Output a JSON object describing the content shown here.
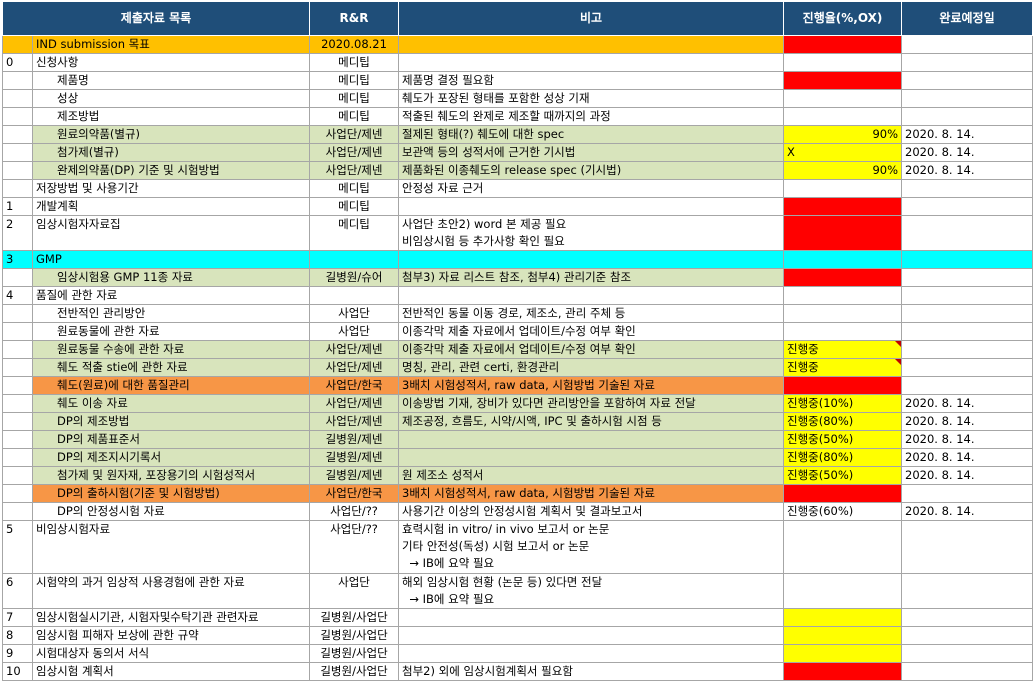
{
  "headers": [
    "제출자료 목록",
    "R&R",
    "비고",
    "진행율(%,OX)",
    "완료예정일"
  ],
  "rows": [
    {
      "num": "",
      "item": "IND submission 목표",
      "rr": "2020.08.21",
      "note": [],
      "progress": "",
      "due": "",
      "rowbg": "orange",
      "pbg": "red"
    },
    {
      "num": "0",
      "item": "신청사항",
      "rr": "메디팁",
      "note": [],
      "progress": "",
      "due": "",
      "rowbg": "",
      "pbg": ""
    },
    {
      "num": "",
      "item": "제품명",
      "rr": "메디팁",
      "note": [
        "제품명 결정 필요함"
      ],
      "progress": "",
      "due": "",
      "rowbg": "",
      "pbg": "red",
      "indent": true
    },
    {
      "num": "",
      "item": "성상",
      "rr": "메디팁",
      "note": [
        "췌도가 포장된 형태를 포함한 성상 기재"
      ],
      "progress": "",
      "due": "",
      "rowbg": "",
      "pbg": "",
      "indent": true
    },
    {
      "num": "",
      "item": "제조방법",
      "rr": "메디팁",
      "note": [
        "적출된 췌도의 완제로 제조할 때까지의 과정"
      ],
      "progress": "",
      "due": "",
      "rowbg": "",
      "pbg": "",
      "indent": true
    },
    {
      "num": "",
      "item": "원료의약품(별규)",
      "rr": "사업단/제넨",
      "note": [
        "절제된 형태(?) 췌도에 대한 spec"
      ],
      "progress": "90%",
      "due": "2020. 8. 14.",
      "rowbg": "green",
      "pbg": "yellow",
      "indent": true,
      "pright": true
    },
    {
      "num": "",
      "item": "첨가제(별규)",
      "rr": "사업단/제넨",
      "note": [
        "보관액 등의 성적서에 근거한 기시법"
      ],
      "progress": "X",
      "due": "2020. 8. 14.",
      "rowbg": "green",
      "pbg": "yellow",
      "indent": true
    },
    {
      "num": "",
      "item": "완제의약품(DP) 기준 및 시험방법",
      "rr": "사업단/제넨",
      "note": [
        "제품화된 이종췌도의 release spec (기시법)"
      ],
      "progress": "90%",
      "due": "2020. 8. 14.",
      "rowbg": "green",
      "pbg": "yellow",
      "indent": true,
      "pright": true
    },
    {
      "num": "",
      "item": "저장방법 및 사용기간",
      "rr": "메디팁",
      "note": [
        "안정성 자료 근거"
      ],
      "progress": "",
      "due": "",
      "rowbg": "",
      "pbg": ""
    },
    {
      "num": "1",
      "item": "개발계획",
      "rr": "메디팁",
      "note": [],
      "progress": "",
      "due": "",
      "rowbg": "",
      "pbg": "red"
    },
    {
      "num": "2",
      "item": "임상시험자자료집",
      "rr": "메디팁",
      "note": [
        "사업단 초안2) word 본 제공 필요",
        "비임상시험 등 추가사항 확인 필요"
      ],
      "progress": "",
      "due": "",
      "rowbg": "",
      "pbg": "red",
      "tall": true
    },
    {
      "num": "3",
      "item": "GMP",
      "rr": "",
      "note": [],
      "progress": "",
      "due": "",
      "rowbg": "cyan",
      "pbg": "cyanfull"
    },
    {
      "num": "",
      "item": "임상시험용 GMP 11종 자료",
      "rr": "길병원/슈어",
      "note": [
        "첨부3) 자료 리스트 참조, 첨부4) 관리기준 참조"
      ],
      "progress": "",
      "due": "",
      "rowbg": "green",
      "pbg": "red",
      "indent": true
    },
    {
      "num": "4",
      "item": "품질에 관한 자료",
      "rr": "",
      "note": [],
      "progress": "",
      "due": "",
      "rowbg": "",
      "pbg": ""
    },
    {
      "num": "",
      "item": "전반적인 관리방안",
      "rr": "사업단",
      "note": [
        "전반적인 동물 이동 경로, 제조소, 관리 주체 등"
      ],
      "progress": "",
      "due": "",
      "rowbg": "",
      "pbg": "",
      "indent": true
    },
    {
      "num": "",
      "item": "원료동물에 관한 자료",
      "rr": "사업단",
      "note": [
        "이종각막 제출 자료에서 업데이트/수정 여부 확인"
      ],
      "progress": "",
      "due": "",
      "rowbg": "",
      "pbg": "",
      "indent": true
    },
    {
      "num": "",
      "item": "원료동물 수송에 관한 자료",
      "rr": "사업단/제넨",
      "note": [
        "이종각막 제출 자료에서 업데이트/수정 여부 확인"
      ],
      "progress": "진행중",
      "due": "",
      "rowbg": "green",
      "pbg": "yellow",
      "indent": true,
      "tri": true
    },
    {
      "num": "",
      "item": "췌도 적출 stie에 관한 자료",
      "rr": "사업단/제넨",
      "note": [
        "명칭, 관리, 관련 certi, 환경관리"
      ],
      "progress": "진행중",
      "due": "",
      "rowbg": "green",
      "pbg": "yellow",
      "indent": true,
      "tri": true
    },
    {
      "num": "",
      "item": "췌도(원료)에 대한 품질관리",
      "rr": "사업단/한국",
      "note": [
        "3배치 시험성적서, raw data, 시험방법 기술된 자료"
      ],
      "progress": "",
      "due": "",
      "rowbg": "dorange",
      "pbg": "red",
      "indent": true
    },
    {
      "num": "",
      "item": "췌도 이송 자료",
      "rr": "사업단/제넨",
      "note": [
        "이송방법 기재, 장비가 있다면 관리방안을 포함하여 자료 전달"
      ],
      "progress": "진행중(10%)",
      "due": "2020. 8. 14.",
      "rowbg": "green",
      "pbg": "yellow",
      "indent": true
    },
    {
      "num": "",
      "item": "DP의 제조방법",
      "rr": "사업단/제넨",
      "note": [
        "제조공정, 흐름도, 시약/시액, IPC 및 출하시험 시점 등"
      ],
      "progress": "진행중(80%)",
      "due": "2020. 8. 14.",
      "rowbg": "green",
      "pbg": "yellow",
      "indent": true
    },
    {
      "num": "",
      "item": "DP의 제품표준서",
      "rr": "길병원/제넨",
      "note": [],
      "progress": "진행중(50%)",
      "due": "2020. 8. 14.",
      "rowbg": "green",
      "pbg": "yellow",
      "indent": true
    },
    {
      "num": "",
      "item": "DP의 제조지시기록서",
      "rr": "길병원/제넨",
      "note": [],
      "progress": "진행중(80%)",
      "due": "2020. 8. 14.",
      "rowbg": "green",
      "pbg": "yellow",
      "indent": true
    },
    {
      "num": "",
      "item": "첨가제 및 원자재, 포장용기의 시험성적서",
      "rr": "길병원/제넨",
      "note": [
        "원 제조소 성적서"
      ],
      "progress": "진행중(50%)",
      "due": "2020. 8. 14.",
      "rowbg": "green",
      "pbg": "yellow",
      "indent": true
    },
    {
      "num": "",
      "item": "DP의 출하시험(기준 및 시험방법)",
      "rr": "사업단/한국",
      "note": [
        "3배치 시험성적서, raw data, 시험방법 기술된 자료"
      ],
      "progress": "",
      "due": "",
      "rowbg": "dorange",
      "pbg": "red",
      "indent": true
    },
    {
      "num": "",
      "item": "DP의 안정성시험 자료",
      "rr": "사업단/??",
      "note": [
        "사용기간 이상의 안정성시험 계획서 및 결과보고서"
      ],
      "progress": "진행중(60%)",
      "due": "2020. 8. 14.",
      "rowbg": "",
      "pbg": "",
      "indent": true
    },
    {
      "num": "5",
      "item": "비임상시험자료",
      "rr": "사업단/??",
      "note": [
        "효력시험 in vitro/ in vivo 보고서 or 논문",
        "기타 안전성(독성) 시험 보고서 or 논문",
        "  → IB에 요약 필요"
      ],
      "progress": "",
      "due": "",
      "rowbg": "",
      "pbg": "",
      "tall3": true
    },
    {
      "num": "6",
      "item": "시험약의 과거 임상적 사용경험에 관한 자료",
      "rr": "사업단",
      "note": [
        "해외 임상시험 현황 (논문 등) 있다면 전달",
        "  → IB에 요약 필요"
      ],
      "progress": "",
      "due": "",
      "rowbg": "",
      "pbg": "",
      "tall": true
    },
    {
      "num": "7",
      "item": "임상시험실시기관, 시험자및수탁기관 관련자료",
      "rr": "길병원/사업단",
      "note": [],
      "progress": "",
      "due": "",
      "rowbg": "",
      "pbg": "yellow"
    },
    {
      "num": "8",
      "item": "임상시험 피해자 보상에 관한 규약",
      "rr": "길병원/사업단",
      "note": [],
      "progress": "",
      "due": "",
      "rowbg": "",
      "pbg": "yellow"
    },
    {
      "num": "9",
      "item": "시험대상자 동의서 서식",
      "rr": "길병원/사업단",
      "note": [],
      "progress": "",
      "due": "",
      "rowbg": "",
      "pbg": "yellow"
    },
    {
      "num": "10",
      "item": "임상시험 계획서",
      "rr": "길병원/사업단",
      "note": [
        "첨부2) 외에 임상시험계획서 필요함"
      ],
      "progress": "",
      "due": "",
      "rowbg": "",
      "pbg": "red"
    }
  ],
  "colors": {
    "header": "#1f4e79",
    "orange": "#ffc000",
    "green": "#d8e4bc",
    "cyan": "#00ffff",
    "darkorange": "#f79646",
    "red": "#ff0000",
    "yellow": "#ffff00"
  }
}
